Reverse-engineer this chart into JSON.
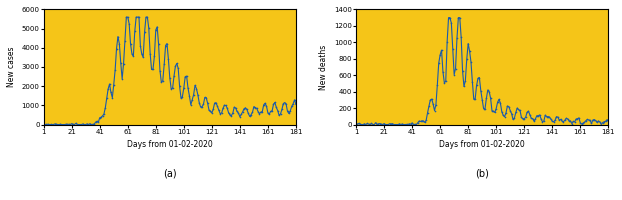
{
  "background_color": "#F5C518",
  "line_color": "#1a5aaa",
  "line_width": 0.8,
  "marker": "o",
  "marker_size": 1.2,
  "xticks": [
    1,
    21,
    41,
    61,
    81,
    101,
    121,
    141,
    161,
    181
  ],
  "xlabel": "Days from 01-02-2020",
  "ylabel_a": "New cases",
  "ylabel_b": "New deaths",
  "ylim_a": [
    0,
    6000
  ],
  "ylim_b": [
    0,
    1400
  ],
  "yticks_a": [
    0,
    1000,
    2000,
    3000,
    4000,
    5000,
    6000
  ],
  "yticks_b": [
    0,
    200,
    400,
    600,
    800,
    1000,
    1200,
    1400
  ],
  "label_a": "(a)",
  "label_b": "(b)",
  "figsize": [
    6.22,
    2.0
  ],
  "dpi": 100
}
